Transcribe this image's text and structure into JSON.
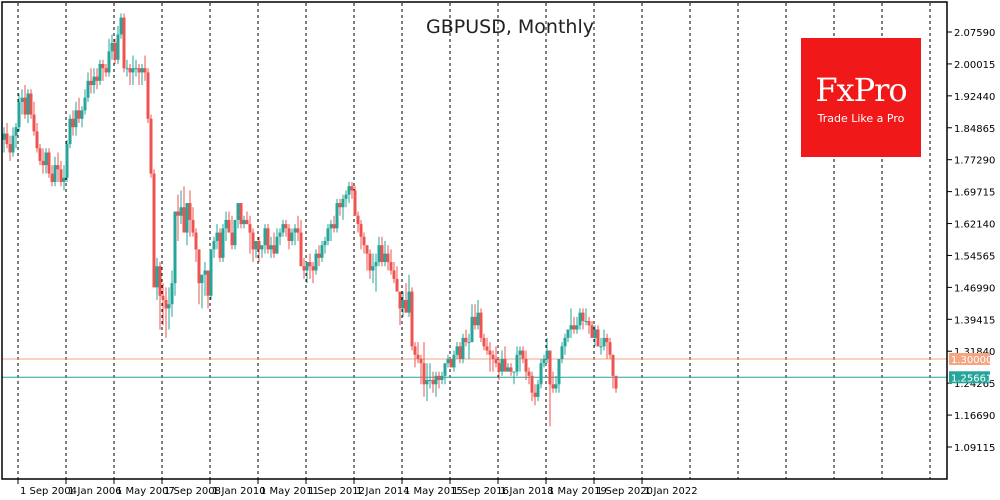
{
  "title": "GBPUSD, Monthly",
  "logo": {
    "brand": "FxPro",
    "tagline": "Trade Like a Pro",
    "color": "#f01818"
  },
  "colors": {
    "bull": "#26a69a",
    "bear": "#ef5350",
    "level_line": "#f4a582",
    "current_line": "#26a69a",
    "frame": "#000000",
    "grid": "#000000"
  },
  "chart_data": {
    "type": "candlestick",
    "title": "GBPUSD, Monthly",
    "xlabel": "",
    "ylabel": "",
    "ylim": [
      1.02,
      2.1
    ],
    "grid": true,
    "y_ticks": [
      "2.07590",
      "2.00015",
      "1.92440",
      "1.84865",
      "1.77290",
      "1.69715",
      "1.62140",
      "1.54565",
      "1.46990",
      "1.39415",
      "1.31840",
      "1.24265",
      "1.16690",
      "1.09115"
    ],
    "x_ticks": [
      "1 Sep 2004",
      "1 Jan 2006",
      "1 May 2007",
      "1 Sep 2008",
      "1 Jan 2010",
      "1 May 2011",
      "1 Sep 2012",
      "1 Jan 2014",
      "1 May 2015",
      "1 Sep 2016",
      "1 Jan 2018",
      "1 May 2019",
      "1 Sep 2020",
      "1 Jan 2022"
    ],
    "horizontal_lines": [
      {
        "label": "1.30000",
        "value": 1.3,
        "color": "#f4a582"
      },
      {
        "label": "1.25661",
        "value": 1.25661,
        "color": "#26a69a"
      }
    ],
    "start": "2004-06",
    "ohlc": [
      [
        1.82,
        1.85,
        1.79,
        1.835
      ],
      [
        1.835,
        1.86,
        1.8,
        1.81
      ],
      [
        1.81,
        1.83,
        1.77,
        1.79
      ],
      [
        1.79,
        1.85,
        1.78,
        1.83
      ],
      [
        1.83,
        1.86,
        1.8,
        1.85
      ],
      [
        1.85,
        1.93,
        1.84,
        1.91
      ],
      [
        1.91,
        1.94,
        1.88,
        1.92
      ],
      [
        1.92,
        1.95,
        1.87,
        1.88
      ],
      [
        1.88,
        1.94,
        1.86,
        1.93
      ],
      [
        1.93,
        1.94,
        1.87,
        1.88
      ],
      [
        1.88,
        1.91,
        1.83,
        1.84
      ],
      [
        1.84,
        1.86,
        1.79,
        1.8
      ],
      [
        1.8,
        1.81,
        1.76,
        1.77
      ],
      [
        1.77,
        1.8,
        1.74,
        1.76
      ],
      [
        1.76,
        1.8,
        1.74,
        1.79
      ],
      [
        1.79,
        1.8,
        1.73,
        1.74
      ],
      [
        1.74,
        1.76,
        1.71,
        1.72
      ],
      [
        1.72,
        1.78,
        1.71,
        1.76
      ],
      [
        1.76,
        1.79,
        1.72,
        1.75
      ],
      [
        1.75,
        1.77,
        1.71,
        1.72
      ],
      [
        1.72,
        1.76,
        1.7,
        1.73
      ],
      [
        1.73,
        1.82,
        1.72,
        1.81
      ],
      [
        1.81,
        1.88,
        1.8,
        1.87
      ],
      [
        1.87,
        1.89,
        1.83,
        1.85
      ],
      [
        1.85,
        1.91,
        1.83,
        1.89
      ],
      [
        1.89,
        1.92,
        1.86,
        1.87
      ],
      [
        1.87,
        1.9,
        1.85,
        1.89
      ],
      [
        1.89,
        1.94,
        1.88,
        1.92
      ],
      [
        1.92,
        1.98,
        1.91,
        1.96
      ],
      [
        1.96,
        1.99,
        1.93,
        1.95
      ],
      [
        1.95,
        1.99,
        1.93,
        1.97
      ],
      [
        1.97,
        1.99,
        1.94,
        1.96
      ],
      [
        1.96,
        2.01,
        1.95,
        2.0
      ],
      [
        2.0,
        2.01,
        1.96,
        1.99
      ],
      [
        1.99,
        2.0,
        1.97,
        1.98
      ],
      [
        1.98,
        2.06,
        1.97,
        2.03
      ],
      [
        2.03,
        2.07,
        2.01,
        2.05
      ],
      [
        2.05,
        2.06,
        2.0,
        2.01
      ],
      [
        2.01,
        2.09,
        2.0,
        2.07
      ],
      [
        2.07,
        2.12,
        2.06,
        2.11
      ],
      [
        2.11,
        2.12,
        1.98,
        1.99
      ],
      [
        1.99,
        2.01,
        1.97,
        1.99
      ],
      [
        1.99,
        2.0,
        1.95,
        1.98
      ],
      [
        1.98,
        2.02,
        1.95,
        1.99
      ],
      [
        1.99,
        2.01,
        1.97,
        1.99
      ],
      [
        1.99,
        2.0,
        1.95,
        1.98
      ],
      [
        1.98,
        2.0,
        1.95,
        1.99
      ],
      [
        1.99,
        2.02,
        1.96,
        1.98
      ],
      [
        1.98,
        1.99,
        1.86,
        1.87
      ],
      [
        1.87,
        1.88,
        1.73,
        1.74
      ],
      [
        1.74,
        1.75,
        1.47,
        1.47
      ],
      [
        1.47,
        1.54,
        1.44,
        1.52
      ],
      [
        1.52,
        1.53,
        1.37,
        1.45
      ],
      [
        1.45,
        1.48,
        1.38,
        1.44
      ],
      [
        1.44,
        1.47,
        1.35,
        1.42
      ],
      [
        1.42,
        1.47,
        1.37,
        1.43
      ],
      [
        1.43,
        1.51,
        1.4,
        1.48
      ],
      [
        1.48,
        1.56,
        1.45,
        1.65
      ],
      [
        1.65,
        1.69,
        1.58,
        1.64
      ],
      [
        1.64,
        1.7,
        1.62,
        1.66
      ],
      [
        1.66,
        1.71,
        1.6,
        1.6
      ],
      [
        1.6,
        1.67,
        1.57,
        1.67
      ],
      [
        1.67,
        1.7,
        1.59,
        1.63
      ],
      [
        1.63,
        1.66,
        1.59,
        1.6
      ],
      [
        1.6,
        1.61,
        1.53,
        1.56
      ],
      [
        1.56,
        1.56,
        1.43,
        1.48
      ],
      [
        1.48,
        1.5,
        1.42,
        1.5
      ],
      [
        1.5,
        1.53,
        1.45,
        1.51
      ],
      [
        1.51,
        1.51,
        1.42,
        1.45
      ],
      [
        1.45,
        1.54,
        1.44,
        1.56
      ],
      [
        1.56,
        1.59,
        1.54,
        1.58
      ],
      [
        1.58,
        1.62,
        1.56,
        1.6
      ],
      [
        1.6,
        1.61,
        1.53,
        1.54
      ],
      [
        1.54,
        1.62,
        1.53,
        1.61
      ],
      [
        1.61,
        1.65,
        1.58,
        1.63
      ],
      [
        1.63,
        1.65,
        1.6,
        1.6
      ],
      [
        1.6,
        1.64,
        1.56,
        1.57
      ],
      [
        1.57,
        1.63,
        1.56,
        1.63
      ],
      [
        1.63,
        1.67,
        1.61,
        1.67
      ],
      [
        1.67,
        1.67,
        1.61,
        1.62
      ],
      [
        1.62,
        1.64,
        1.61,
        1.63
      ],
      [
        1.63,
        1.65,
        1.62,
        1.62
      ],
      [
        1.62,
        1.64,
        1.55,
        1.6
      ],
      [
        1.6,
        1.61,
        1.53,
        1.56
      ],
      [
        1.56,
        1.58,
        1.54,
        1.58
      ],
      [
        1.58,
        1.59,
        1.53,
        1.56
      ],
      [
        1.56,
        1.57,
        1.54,
        1.57
      ],
      [
        1.57,
        1.62,
        1.55,
        1.61
      ],
      [
        1.61,
        1.62,
        1.55,
        1.56
      ],
      [
        1.56,
        1.59,
        1.54,
        1.57
      ],
      [
        1.57,
        1.6,
        1.54,
        1.55
      ],
      [
        1.55,
        1.61,
        1.55,
        1.59
      ],
      [
        1.59,
        1.61,
        1.57,
        1.6
      ],
      [
        1.6,
        1.63,
        1.59,
        1.62
      ],
      [
        1.62,
        1.63,
        1.59,
        1.61
      ],
      [
        1.61,
        1.62,
        1.56,
        1.58
      ],
      [
        1.58,
        1.61,
        1.57,
        1.6
      ],
      [
        1.6,
        1.62,
        1.57,
        1.61
      ],
      [
        1.61,
        1.64,
        1.58,
        1.6
      ],
      [
        1.6,
        1.63,
        1.55,
        1.52
      ],
      [
        1.52,
        1.54,
        1.49,
        1.51
      ],
      [
        1.51,
        1.53,
        1.48,
        1.53
      ],
      [
        1.53,
        1.55,
        1.49,
        1.52
      ],
      [
        1.52,
        1.53,
        1.48,
        1.51
      ],
      [
        1.51,
        1.56,
        1.5,
        1.55
      ],
      [
        1.55,
        1.57,
        1.52,
        1.54
      ],
      [
        1.54,
        1.58,
        1.53,
        1.57
      ],
      [
        1.57,
        1.59,
        1.55,
        1.58
      ],
      [
        1.58,
        1.62,
        1.57,
        1.61
      ],
      [
        1.61,
        1.63,
        1.58,
        1.62
      ],
      [
        1.62,
        1.64,
        1.6,
        1.61
      ],
      [
        1.61,
        1.68,
        1.6,
        1.67
      ],
      [
        1.67,
        1.68,
        1.64,
        1.66
      ],
      [
        1.66,
        1.69,
        1.63,
        1.68
      ],
      [
        1.68,
        1.7,
        1.66,
        1.69
      ],
      [
        1.69,
        1.72,
        1.67,
        1.71
      ],
      [
        1.71,
        1.72,
        1.68,
        1.7
      ],
      [
        1.7,
        1.71,
        1.66,
        1.64
      ],
      [
        1.64,
        1.65,
        1.6,
        1.62
      ],
      [
        1.62,
        1.63,
        1.56,
        1.59
      ],
      [
        1.59,
        1.6,
        1.55,
        1.57
      ],
      [
        1.57,
        1.57,
        1.51,
        1.55
      ],
      [
        1.55,
        1.56,
        1.49,
        1.51
      ],
      [
        1.51,
        1.55,
        1.48,
        1.52
      ],
      [
        1.52,
        1.55,
        1.46,
        1.53
      ],
      [
        1.53,
        1.59,
        1.52,
        1.57
      ],
      [
        1.57,
        1.59,
        1.52,
        1.53
      ],
      [
        1.53,
        1.58,
        1.52,
        1.55
      ],
      [
        1.55,
        1.57,
        1.51,
        1.53
      ],
      [
        1.53,
        1.56,
        1.5,
        1.51
      ],
      [
        1.51,
        1.53,
        1.48,
        1.49
      ],
      [
        1.49,
        1.52,
        1.46,
        1.46
      ],
      [
        1.46,
        1.45,
        1.38,
        1.42
      ],
      [
        1.42,
        1.46,
        1.4,
        1.44
      ],
      [
        1.44,
        1.48,
        1.41,
        1.41
      ],
      [
        1.41,
        1.5,
        1.4,
        1.46
      ],
      [
        1.46,
        1.47,
        1.32,
        1.33
      ],
      [
        1.33,
        1.34,
        1.28,
        1.31
      ],
      [
        1.31,
        1.34,
        1.29,
        1.3
      ],
      [
        1.3,
        1.31,
        1.24,
        1.29
      ],
      [
        1.29,
        1.34,
        1.21,
        1.24
      ],
      [
        1.24,
        1.29,
        1.2,
        1.25
      ],
      [
        1.25,
        1.29,
        1.23,
        1.25
      ],
      [
        1.25,
        1.27,
        1.22,
        1.24
      ],
      [
        1.24,
        1.27,
        1.21,
        1.26
      ],
      [
        1.26,
        1.27,
        1.23,
        1.25
      ],
      [
        1.25,
        1.27,
        1.24,
        1.26
      ],
      [
        1.26,
        1.29,
        1.24,
        1.29
      ],
      [
        1.29,
        1.31,
        1.28,
        1.3
      ],
      [
        1.3,
        1.3,
        1.28,
        1.28
      ],
      [
        1.28,
        1.32,
        1.27,
        1.31
      ],
      [
        1.31,
        1.34,
        1.3,
        1.33
      ],
      [
        1.33,
        1.34,
        1.29,
        1.3
      ],
      [
        1.3,
        1.36,
        1.29,
        1.35
      ],
      [
        1.35,
        1.37,
        1.33,
        1.34
      ],
      [
        1.34,
        1.36,
        1.3,
        1.34
      ],
      [
        1.34,
        1.43,
        1.34,
        1.4
      ],
      [
        1.4,
        1.43,
        1.37,
        1.38
      ],
      [
        1.38,
        1.44,
        1.37,
        1.41
      ],
      [
        1.41,
        1.42,
        1.34,
        1.35
      ],
      [
        1.35,
        1.36,
        1.32,
        1.33
      ],
      [
        1.33,
        1.35,
        1.31,
        1.32
      ],
      [
        1.32,
        1.34,
        1.27,
        1.31
      ],
      [
        1.31,
        1.32,
        1.27,
        1.3
      ],
      [
        1.3,
        1.33,
        1.28,
        1.29
      ],
      [
        1.29,
        1.3,
        1.25,
        1.27
      ],
      [
        1.27,
        1.32,
        1.26,
        1.3
      ],
      [
        1.3,
        1.33,
        1.28,
        1.27
      ],
      [
        1.27,
        1.29,
        1.27,
        1.28
      ],
      [
        1.28,
        1.29,
        1.26,
        1.27
      ],
      [
        1.27,
        1.27,
        1.24,
        1.27
      ],
      [
        1.27,
        1.33,
        1.26,
        1.31
      ],
      [
        1.31,
        1.33,
        1.27,
        1.32
      ],
      [
        1.32,
        1.33,
        1.29,
        1.3
      ],
      [
        1.3,
        1.32,
        1.25,
        1.27
      ],
      [
        1.27,
        1.28,
        1.24,
        1.26
      ],
      [
        1.26,
        1.27,
        1.2,
        1.22
      ],
      [
        1.22,
        1.24,
        1.19,
        1.21
      ],
      [
        1.21,
        1.25,
        1.2,
        1.24
      ],
      [
        1.24,
        1.3,
        1.23,
        1.29
      ],
      [
        1.29,
        1.31,
        1.28,
        1.3
      ],
      [
        1.3,
        1.35,
        1.29,
        1.32
      ],
      [
        1.32,
        1.32,
        1.14,
        1.24
      ],
      [
        1.24,
        1.27,
        1.22,
        1.23
      ],
      [
        1.23,
        1.26,
        1.22,
        1.24
      ],
      [
        1.24,
        1.29,
        1.22,
        1.3
      ],
      [
        1.3,
        1.34,
        1.29,
        1.33
      ],
      [
        1.33,
        1.36,
        1.31,
        1.35
      ],
      [
        1.35,
        1.37,
        1.34,
        1.37
      ],
      [
        1.37,
        1.42,
        1.35,
        1.38
      ],
      [
        1.38,
        1.4,
        1.36,
        1.37
      ],
      [
        1.37,
        1.4,
        1.36,
        1.38
      ],
      [
        1.38,
        1.42,
        1.37,
        1.41
      ],
      [
        1.41,
        1.42,
        1.37,
        1.39
      ],
      [
        1.39,
        1.42,
        1.38,
        1.39
      ],
      [
        1.39,
        1.4,
        1.36,
        1.38
      ],
      [
        1.38,
        1.39,
        1.35,
        1.35
      ],
      [
        1.35,
        1.38,
        1.33,
        1.37
      ],
      [
        1.37,
        1.38,
        1.33,
        1.33
      ],
      [
        1.33,
        1.35,
        1.31,
        1.33
      ],
      [
        1.33,
        1.37,
        1.32,
        1.35
      ],
      [
        1.35,
        1.36,
        1.3,
        1.34
      ],
      [
        1.34,
        1.35,
        1.3,
        1.31
      ],
      [
        1.31,
        1.31,
        1.23,
        1.26
      ],
      [
        1.26,
        1.26,
        1.22,
        1.23
      ]
    ]
  }
}
